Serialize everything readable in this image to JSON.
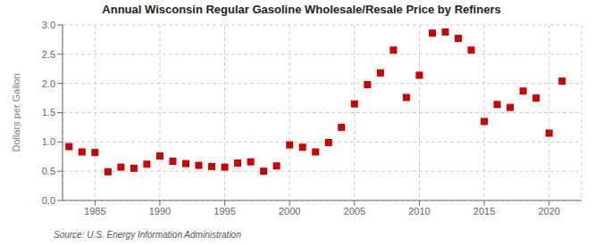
{
  "chart_data": {
    "type": "scatter",
    "title": "Annual Wisconsin Regular Gasoline Wholesale/Resale Price by Refiners",
    "y_label": "Dollars per Gallon",
    "annotations": [
      "Source: U.S. Energy Information Administration"
    ],
    "x": [
      1983,
      1984,
      1985,
      1986,
      1987,
      1988,
      1989,
      1990,
      1991,
      1992,
      1993,
      1994,
      1995,
      1996,
      1997,
      1998,
      1999,
      2000,
      2001,
      2002,
      2003,
      2004,
      2005,
      2006,
      2007,
      2008,
      2009,
      2010,
      2011,
      2012,
      2013,
      2014,
      2015,
      2016,
      2017,
      2018,
      2019,
      2020,
      2021
    ],
    "values": [
      0.92,
      0.83,
      0.82,
      0.49,
      0.57,
      0.55,
      0.62,
      0.76,
      0.67,
      0.63,
      0.6,
      0.58,
      0.57,
      0.64,
      0.66,
      0.5,
      0.59,
      0.95,
      0.91,
      0.83,
      0.99,
      1.25,
      1.65,
      1.98,
      2.18,
      2.57,
      1.76,
      2.14,
      2.86,
      2.88,
      2.77,
      2.57,
      1.35,
      1.64,
      1.59,
      1.87,
      1.75,
      1.15,
      2.04
    ],
    "color": "#cc0000",
    "marker": "square",
    "xlim": [
      1982.5,
      2022.5
    ],
    "ylim": [
      0.0,
      3.0
    ],
    "xticks": [
      1985,
      1990,
      1995,
      2000,
      2005,
      2010,
      2015,
      2020
    ],
    "yticks": [
      {
        "value": 0,
        "label": "0.0"
      },
      0.5,
      {
        "value": 1,
        "label": "1.0"
      },
      1.5,
      {
        "value": 2,
        "label": "2.0"
      },
      2.5,
      {
        "value": 3,
        "label": "3.0"
      }
    ],
    "grid": true
  }
}
